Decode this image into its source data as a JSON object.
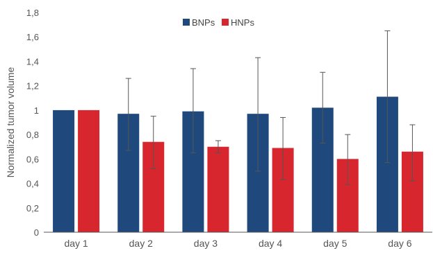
{
  "chart_data": {
    "type": "bar",
    "title": "",
    "xlabel": "",
    "ylabel": "Normalized tumor volume",
    "categories": [
      "day 1",
      "day 2",
      "day 3",
      "day 4",
      "day 5",
      "day 6"
    ],
    "ylim": [
      0,
      1.8
    ],
    "yticks": [
      "0",
      "0,2",
      "0,4",
      "0,6",
      "0,8",
      "1",
      "1,2",
      "1,4",
      "1,6",
      "1,8"
    ],
    "grid": false,
    "legend_position": "top-center",
    "series": [
      {
        "name": "BNPs",
        "color": "#1F497D",
        "values": [
          1.0,
          0.97,
          0.99,
          0.97,
          1.02,
          1.11
        ],
        "error_low": [
          null,
          0.67,
          0.65,
          0.5,
          0.73,
          0.57
        ],
        "error_high": [
          null,
          1.26,
          1.34,
          1.43,
          1.31,
          1.65
        ]
      },
      {
        "name": "HNPs",
        "color": "#D7262D",
        "values": [
          1.0,
          0.74,
          0.7,
          0.69,
          0.6,
          0.66
        ],
        "error_low": [
          null,
          0.52,
          0.65,
          0.43,
          0.39,
          0.42
        ],
        "error_high": [
          null,
          0.95,
          0.75,
          0.94,
          0.8,
          0.88
        ]
      }
    ]
  }
}
